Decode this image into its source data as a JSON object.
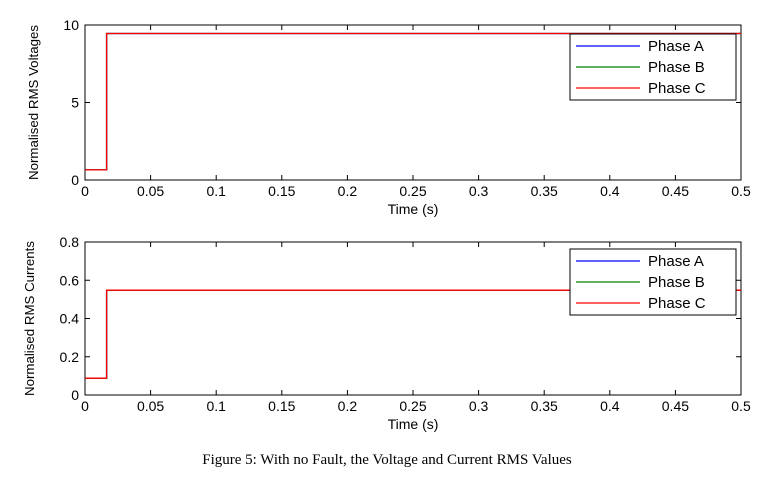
{
  "caption": "Figure 5: With no Fault, the Voltage and Current RMS Values",
  "colors": {
    "phase_a": "#0000ff",
    "phase_b": "#008000",
    "phase_c": "#ff0000"
  },
  "chart_data": [
    {
      "type": "line",
      "title": "",
      "xlabel": "Time (s)",
      "ylabel": "Normalised RMS Voltages",
      "xlim": [
        0,
        0.5
      ],
      "ylim": [
        0,
        10
      ],
      "xticks": [
        0,
        0.05,
        0.1,
        0.15,
        0.2,
        0.25,
        0.3,
        0.35,
        0.4,
        0.45,
        0.5
      ],
      "xtick_labels": [
        "0",
        "0.05",
        "0.1",
        "0.15",
        "0.2",
        "0.25",
        "0.3",
        "0.35",
        "0.4",
        "0.45",
        "0.5"
      ],
      "yticks": [
        0,
        5,
        10
      ],
      "ytick_labels": [
        "0",
        "5",
        "10"
      ],
      "legend_position": "top-right",
      "grid": false,
      "series": [
        {
          "name": "Phase A",
          "color": "#0000ff",
          "x": [
            0,
            0.0165,
            0.0165,
            0.5
          ],
          "y": [
            0.65,
            0.65,
            9.45,
            9.45
          ]
        },
        {
          "name": "Phase B",
          "color": "#008000",
          "x": [
            0,
            0.0165,
            0.0165,
            0.5
          ],
          "y": [
            0.65,
            0.65,
            9.45,
            9.45
          ]
        },
        {
          "name": "Phase C",
          "color": "#ff0000",
          "x": [
            0,
            0.0165,
            0.0165,
            0.5
          ],
          "y": [
            0.65,
            0.65,
            9.45,
            9.45
          ]
        }
      ]
    },
    {
      "type": "line",
      "title": "",
      "xlabel": "Time (s)",
      "ylabel": "Normalised RMS Currents",
      "xlim": [
        0,
        0.5
      ],
      "ylim": [
        0,
        0.8
      ],
      "xticks": [
        0,
        0.05,
        0.1,
        0.15,
        0.2,
        0.25,
        0.3,
        0.35,
        0.4,
        0.45,
        0.5
      ],
      "xtick_labels": [
        "0",
        "0.05",
        "0.1",
        "0.15",
        "0.2",
        "0.25",
        "0.3",
        "0.35",
        "0.4",
        "0.45",
        "0.5"
      ],
      "yticks": [
        0,
        0.2,
        0.4,
        0.6,
        0.8
      ],
      "ytick_labels": [
        "0",
        "0.2",
        "0.4",
        "0.6",
        "0.8"
      ],
      "legend_position": "top-right",
      "grid": false,
      "series": [
        {
          "name": "Phase A",
          "color": "#0000ff",
          "x": [
            0,
            0.0165,
            0.0165,
            0.5
          ],
          "y": [
            0.088,
            0.088,
            0.548,
            0.548
          ]
        },
        {
          "name": "Phase B",
          "color": "#008000",
          "x": [
            0,
            0.0165,
            0.0165,
            0.5
          ],
          "y": [
            0.088,
            0.088,
            0.548,
            0.548
          ]
        },
        {
          "name": "Phase C",
          "color": "#ff0000",
          "x": [
            0,
            0.0165,
            0.0165,
            0.5
          ],
          "y": [
            0.088,
            0.088,
            0.548,
            0.548
          ]
        }
      ]
    }
  ]
}
